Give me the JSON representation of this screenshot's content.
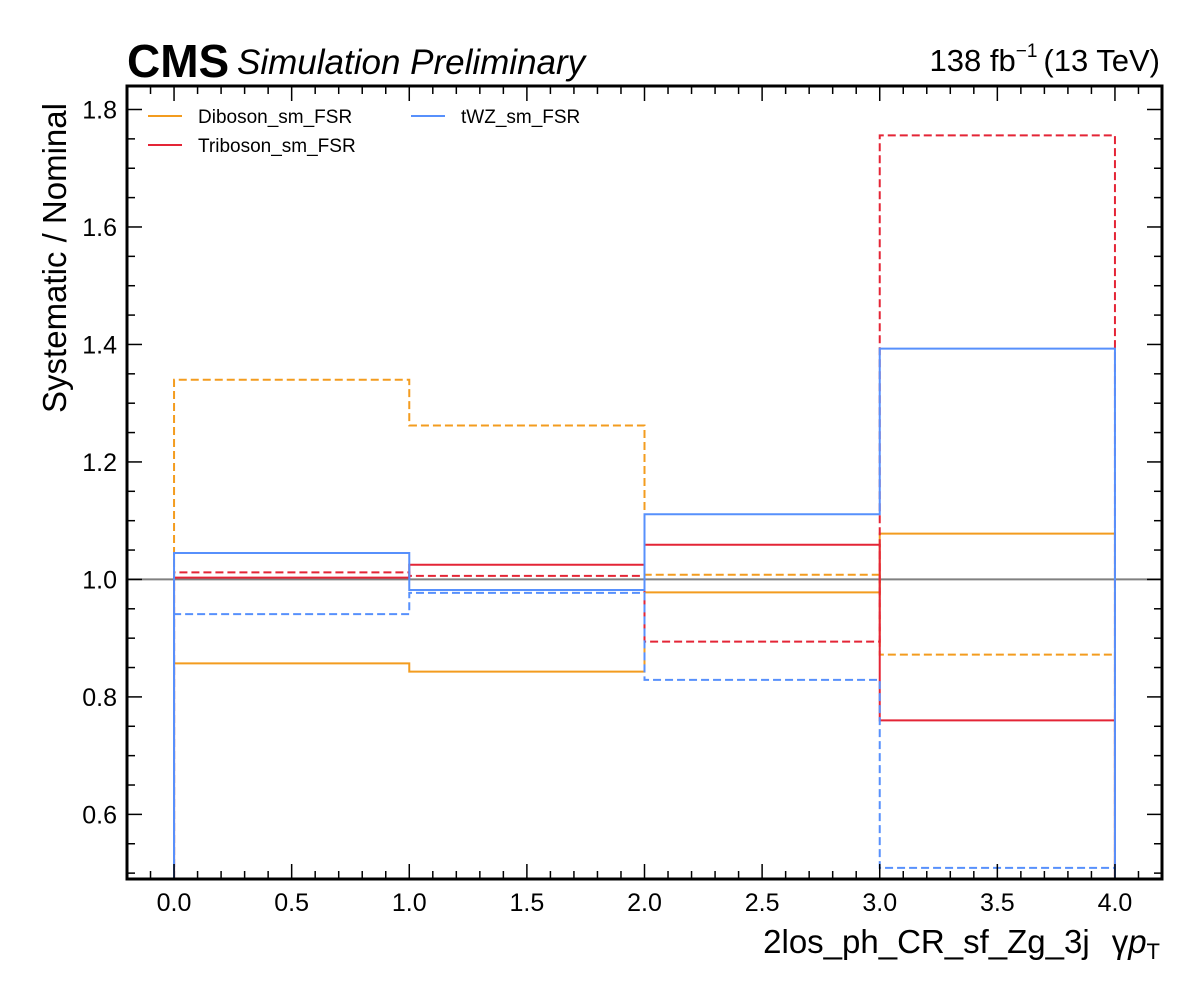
{
  "header": {
    "cms_label": "CMS",
    "status_label": "Simulation Preliminary",
    "lumi_value": "138 fb",
    "lumi_exponent": "−1",
    "energy": "(13 TeV)"
  },
  "colors": {
    "Diboson_sm_FSR": "#f39c1f",
    "Triboson_sm_FSR": "#e42536",
    "tWZ_sm_FSR": "#5790fc",
    "nominal_line": "#808080"
  },
  "chart_data": {
    "type": "line",
    "style": "step-histogram",
    "xlabel": "2los_ph_CR_sf_Zg_3j",
    "xlabel_suffix": "γ",
    "xlabel_var": "p",
    "xlabel_sub": "T",
    "ylabel": "Systematic / Nominal",
    "xlim": [
      -0.2,
      4.2
    ],
    "ylim": [
      0.49,
      1.84
    ],
    "x_ticks": [
      0.0,
      0.5,
      1.0,
      1.5,
      2.0,
      2.5,
      3.0,
      3.5,
      4.0
    ],
    "x_tick_labels": [
      "0.0",
      "0.5",
      "1.0",
      "1.5",
      "2.0",
      "2.5",
      "3.0",
      "3.5",
      "4.0"
    ],
    "y_ticks": [
      0.6,
      0.8,
      1.0,
      1.2,
      1.4,
      1.6,
      1.8
    ],
    "y_tick_labels": [
      "0.6",
      "0.8",
      "1.0",
      "1.2",
      "1.4",
      "1.6",
      "1.8"
    ],
    "bin_edges": [
      0,
      1,
      2,
      3,
      4
    ],
    "reference_line": 1.0,
    "grid": false,
    "legend_placement": "top-left",
    "series": [
      {
        "name": "Diboson_sm_FSR",
        "variation": "up",
        "line": "solid",
        "values": [
          0.857,
          0.843,
          0.978,
          1.078
        ]
      },
      {
        "name": "Diboson_sm_FSR",
        "variation": "down",
        "line": "dashed",
        "values": [
          1.34,
          1.262,
          1.008,
          0.872
        ]
      },
      {
        "name": "Triboson_sm_FSR",
        "variation": "up",
        "line": "solid",
        "values": [
          1.003,
          1.025,
          1.059,
          0.76
        ]
      },
      {
        "name": "Triboson_sm_FSR",
        "variation": "down",
        "line": "dashed",
        "values": [
          1.012,
          1.006,
          0.894,
          1.756
        ]
      },
      {
        "name": "tWZ_sm_FSR",
        "variation": "up",
        "line": "solid",
        "values": [
          1.045,
          0.982,
          1.111,
          1.393
        ]
      },
      {
        "name": "tWZ_sm_FSR",
        "variation": "down",
        "line": "dashed",
        "values": [
          0.941,
          0.977,
          0.829,
          0.509
        ]
      }
    ],
    "legend": [
      "Diboson_sm_FSR",
      "Triboson_sm_FSR",
      "tWZ_sm_FSR"
    ]
  }
}
